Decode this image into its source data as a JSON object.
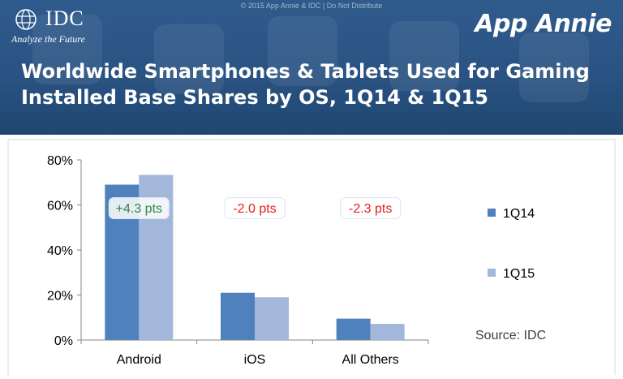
{
  "header": {
    "copyright": "© 2015 App Annie & IDC | Do Not Distribute",
    "idc_logo": "IDC",
    "idc_tagline": "Analyze the Future",
    "appannie_logo": "App Annie",
    "title_line1": "Worldwide Smartphones & Tablets Used for Gaming",
    "title_line2": "Installed Base Shares by OS, 1Q14 & 1Q15"
  },
  "chart_data": {
    "type": "bar",
    "title": "Worldwide Smartphones & Tablets Used for Gaming Installed Base Shares by OS, 1Q14 & 1Q15",
    "categories": [
      "Android",
      "iOS",
      "All Others"
    ],
    "series": [
      {
        "name": "1Q14",
        "values": [
          69,
          21,
          9.5
        ],
        "color": "#4f81bd"
      },
      {
        "name": "1Q15",
        "values": [
          73.3,
          19,
          7.2
        ],
        "color": "#a3b7da"
      }
    ],
    "ylim": [
      0,
      80
    ],
    "yticks": [
      "0%",
      "20%",
      "40%",
      "60%",
      "80%"
    ],
    "ytick_values": [
      0,
      20,
      40,
      60,
      80
    ],
    "annotations": [
      {
        "text": "+4.3 pts",
        "color": "#2f8a3a"
      },
      {
        "text": "-2.0 pts",
        "color": "#e02020"
      },
      {
        "text": "-2.3 pts",
        "color": "#e02020"
      }
    ],
    "source": "Source: IDC",
    "legend_position": "right",
    "grid": false
  }
}
